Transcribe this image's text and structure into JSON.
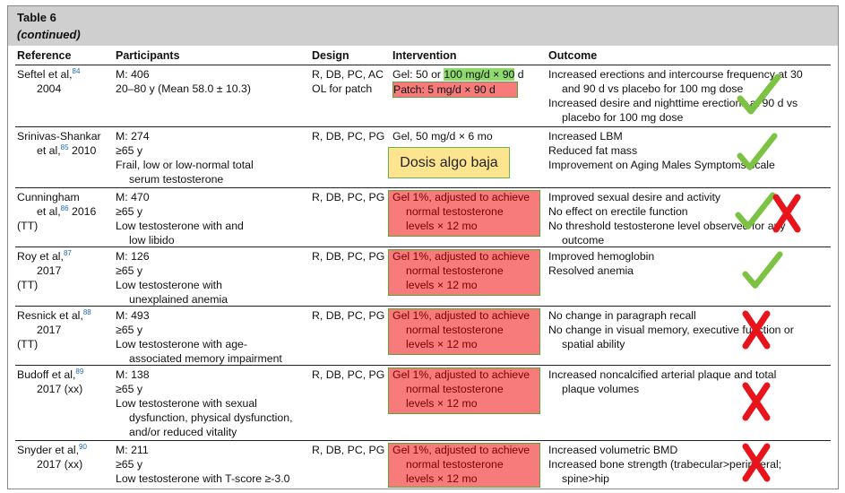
{
  "caption": {
    "title": "Table 6",
    "continued": "(continued)"
  },
  "headers": {
    "reference": "Reference",
    "participants": "Participants",
    "design": "Design",
    "intervention": "Intervention",
    "outcome": "Outcome"
  },
  "rows": [
    {
      "ref1": "Seftel et al,",
      "ref_sup": "84",
      "ref2": "2004",
      "ref3": "",
      "part": [
        "M: 406",
        "20–80 y (Mean 58.0 ± 10.3)",
        "",
        ""
      ],
      "design1": "R, DB, PC, AC",
      "design2": "OL for patch",
      "interv": [
        "Gel: 50 or ",
        "100 mg/d × 90",
        " d",
        "Patch: 5 mg/d × 90 d"
      ],
      "outcome": [
        "Increased erections and intercourse frequency at 30",
        "and 90 d vs placebo for 100 mg dose",
        "Increased desire and nighttime erections at 90 d vs",
        "placebo for 100 mg dose"
      ],
      "verdict": "check"
    },
    {
      "ref1": "Srinivas-Shankar",
      "ref_sup": "85",
      "ref2": "et al,",
      "ref2b": " 2010",
      "ref3": "",
      "part": [
        "M: 274",
        "≥65 y",
        "Frail, low or low-normal total",
        "serum testosterone"
      ],
      "design1": "R, DB, PC, PG",
      "interv": [
        "Gel, 50 mg/d × 6 mo"
      ],
      "note": "Dosis algo baja",
      "outcome": [
        "Increased LBM",
        "Reduced fat mass",
        "Improvement on Aging Males Symptoms scale"
      ],
      "verdict": "check"
    },
    {
      "ref1": "Cunningham",
      "ref_sup": "86",
      "ref2": "et al,",
      "ref2b": " 2016",
      "ref3": "(TT)",
      "part": [
        "M: 470",
        "≥65 y",
        "Low testosterone with and",
        "low libido"
      ],
      "design1": "R, DB, PC, PG",
      "interv": [
        "Gel 1%, adjusted to achieve",
        "normal testosterone",
        "levels × 12 mo"
      ],
      "outcome": [
        "Improved sexual desire and activity",
        "No effect on erectile function",
        "No threshold testosterone level observed for any",
        "outcome"
      ],
      "verdict": "check-cross"
    },
    {
      "ref1": "Roy et al,",
      "ref_sup": "87",
      "ref2": "2017",
      "ref3": "(TT)",
      "part": [
        "M: 126",
        "≥65 y",
        "Low testosterone with",
        "unexplained anemia"
      ],
      "design1": "R, DB, PC, PG",
      "interv": [
        "Gel 1%, adjusted to achieve",
        "normal testosterone",
        "levels × 12 mo"
      ],
      "outcome": [
        "Improved hemoglobin",
        "Resolved anemia"
      ],
      "verdict": "check"
    },
    {
      "ref1": "Resnick et al,",
      "ref_sup": "88",
      "ref2": "2017",
      "ref3": "(TT)",
      "part": [
        "M: 493",
        "≥65 y",
        "Low testosterone with age-",
        "associated memory impairment"
      ],
      "design1": "R, DB, PC, PG",
      "interv": [
        "Gel 1%, adjusted to achieve",
        "normal testosterone",
        "levels × 12 mo"
      ],
      "outcome": [
        "No change in paragraph recall",
        "No change in visual memory, executive function or",
        "spatial ability"
      ],
      "verdict": "cross"
    },
    {
      "ref1": "Budoff et al,",
      "ref_sup": "89",
      "ref2": "2017 (xx)",
      "ref3": "",
      "part": [
        "M: 138",
        "≥65 y",
        "Low testosterone with sexual",
        "dysfunction, physical dysfunction,",
        "and/or reduced vitality"
      ],
      "design1": "R, DB, PC, PG",
      "interv": [
        "Gel 1%, adjusted to achieve",
        "normal testosterone",
        "levels × 12 mo"
      ],
      "outcome": [
        "Increased noncalcified arterial plaque and total",
        "plaque volumes"
      ],
      "verdict": "cross"
    },
    {
      "ref1": "Snyder et al,",
      "ref_sup": "90",
      "ref2": "2017 (xx)",
      "ref3": "",
      "part": [
        "M: 211",
        "≥65 y",
        "Low testosterone with T-score ≥-3.0"
      ],
      "design1": "R, DB, PC, PG",
      "interv": [
        "Gel 1%, adjusted to achieve",
        "normal testosterone",
        "levels × 12 mo"
      ],
      "outcome": [
        "Increased volumetric BMD",
        "Increased bone strength (trabecular>peripheral;",
        "spine>hip"
      ],
      "verdict": "cross"
    }
  ],
  "colors": {
    "check": "#7cc344",
    "cross": "#e8141b",
    "highlight_red": "#f77b7b",
    "highlight_green": "#8fd96f",
    "note_bg": "#fde58f"
  }
}
